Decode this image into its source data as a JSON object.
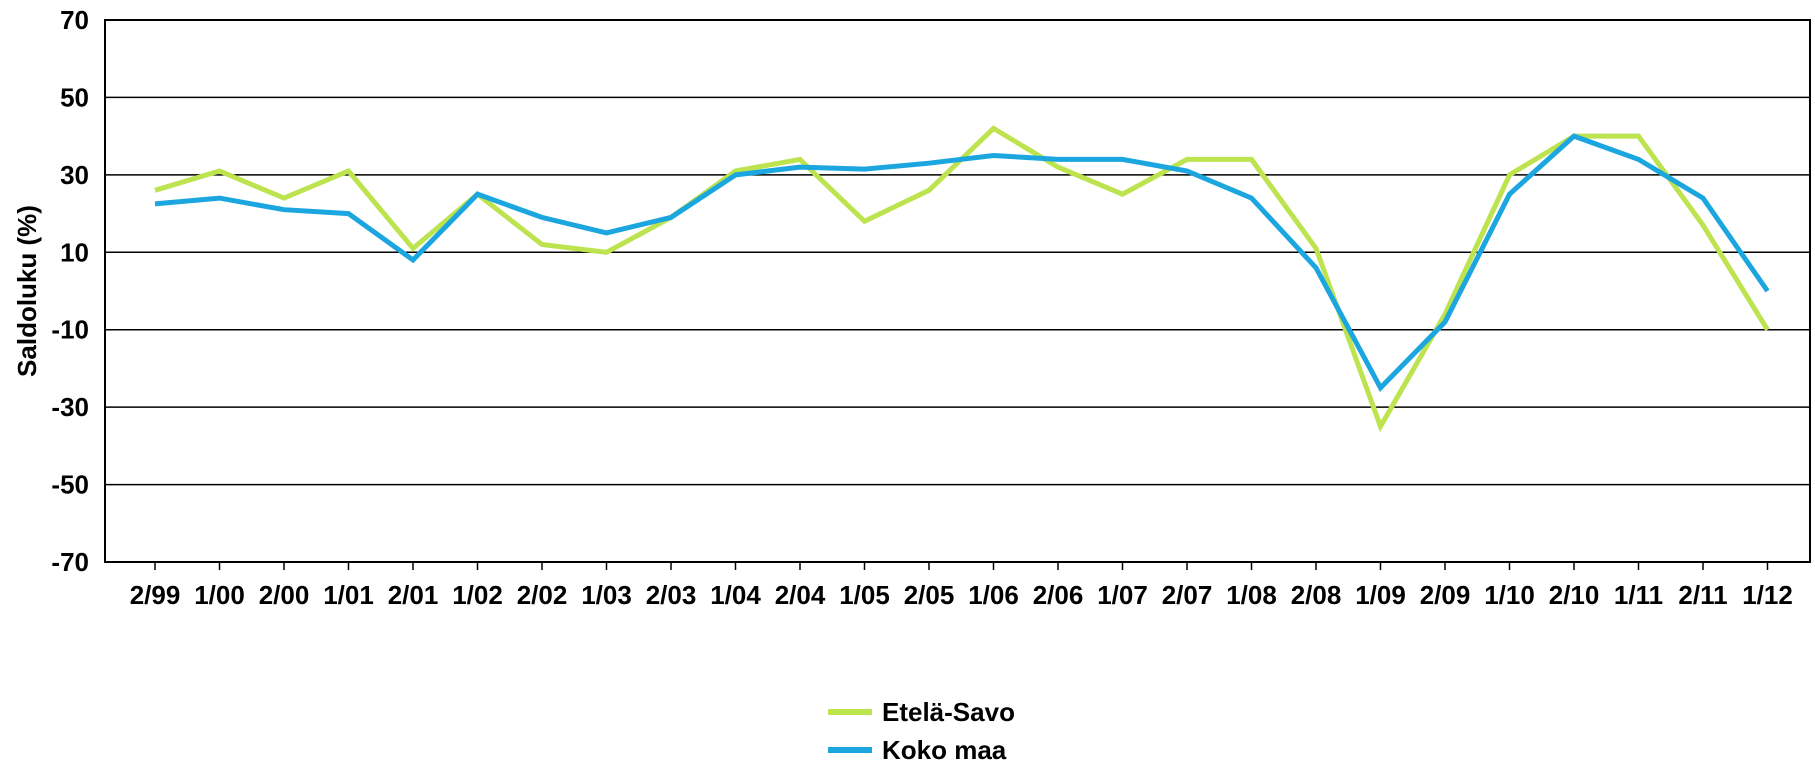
{
  "chart_data": {
    "type": "line",
    "title": "",
    "xlabel": "",
    "ylabel": "Saldoluku (%)",
    "ylim": [
      -70,
      70
    ],
    "yticks": [
      "70",
      "50",
      "30",
      "10",
      "-10",
      "-30",
      "-50",
      "-70"
    ],
    "grid": true,
    "legend_position": "bottom",
    "categories": [
      "2/99",
      "1/00",
      "2/00",
      "1/01",
      "2/01",
      "1/02",
      "2/02",
      "1/03",
      "2/03",
      "1/04",
      "2/04",
      "1/05",
      "2/05",
      "1/06",
      "2/06",
      "1/07",
      "2/07",
      "1/08",
      "2/08",
      "1/09",
      "2/09",
      "1/10",
      "2/10",
      "1/11",
      "2/11",
      "1/12"
    ],
    "series": [
      {
        "name": "Etelä-Savo",
        "color": "#bde34f",
        "values": [
          26,
          31,
          24,
          31,
          11,
          25,
          12,
          10,
          19,
          31,
          34,
          18,
          26,
          42,
          32,
          25,
          34,
          34,
          11,
          -35,
          -6,
          30,
          40,
          40,
          17,
          -10
        ]
      },
      {
        "name": "Koko maa",
        "color": "#1ba6df",
        "values": [
          22.5,
          24,
          21,
          20,
          8,
          25,
          19,
          15,
          19,
          30,
          32,
          31.5,
          33,
          35,
          34,
          34,
          31,
          24,
          6,
          -25,
          -8,
          25,
          40,
          34,
          24,
          0
        ]
      }
    ]
  }
}
